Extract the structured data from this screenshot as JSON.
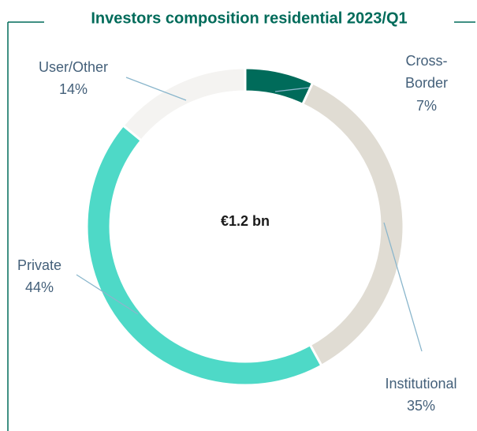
{
  "chart_data": {
    "type": "donut",
    "title": "Investors composition residential 2023/Q1",
    "center_label": "€1.2 bn",
    "categories": [
      "Cross-Border",
      "Institutional",
      "Private",
      "User/Other"
    ],
    "values": [
      7,
      35,
      44,
      14
    ],
    "value_labels": [
      "7%",
      "35%",
      "44%",
      "14%"
    ],
    "colors": [
      "#006b5a",
      "#e0dcd3",
      "#4ed9c7",
      "#f4f3f1"
    ]
  }
}
